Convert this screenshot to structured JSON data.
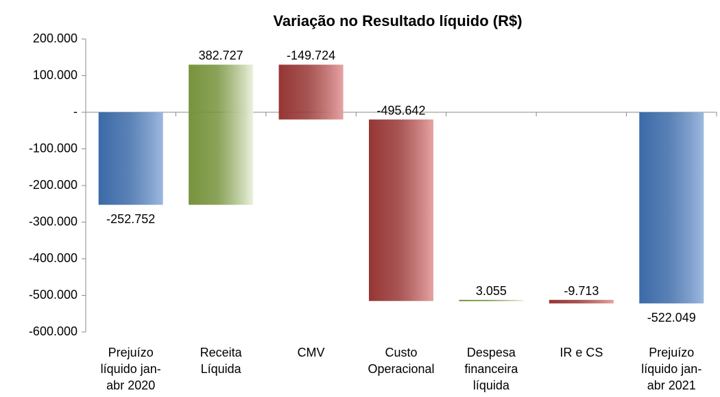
{
  "chart_data": {
    "type": "waterfall",
    "title": "Variação no Resultado líquido (R$)",
    "categories": [
      "Prejuízo líquido jan-abr 2020",
      "Receita Líquida",
      "CMV",
      "Custo Operacional",
      "Despesa financeira líquida",
      "IR e CS",
      "Prejuízo líquido jan-abr 2021"
    ],
    "measures": [
      "absolute",
      "relative",
      "relative",
      "relative",
      "relative",
      "relative",
      "total"
    ],
    "values": [
      -252752,
      382727,
      -149724,
      -495642,
      3055,
      -9713,
      -522049
    ],
    "value_labels": [
      "-252.752",
      "382.727",
      "-149.724",
      "-495.642",
      "3.055",
      "-9.713",
      "-522.049"
    ],
    "colors": {
      "total": [
        "#3b6aa8",
        "#9db8de"
      ],
      "increase": [
        "#77933c",
        "#ebf1de"
      ],
      "decrease": [
        "#963634",
        "#e6a3a3"
      ]
    },
    "ylim": [
      -600000,
      200000
    ],
    "yticks": [
      {
        "value": 200000,
        "label": "200.000"
      },
      {
        "value": 100000,
        "label": "100.000"
      },
      {
        "value": 0,
        "label": "-"
      },
      {
        "value": -100000,
        "label": "-100.000"
      },
      {
        "value": -200000,
        "label": "-200.000"
      },
      {
        "value": -300000,
        "label": "-300.000"
      },
      {
        "value": -400000,
        "label": "-400.000"
      },
      {
        "value": -500000,
        "label": "-500.000"
      },
      {
        "value": -600000,
        "label": "-600.000"
      }
    ]
  }
}
